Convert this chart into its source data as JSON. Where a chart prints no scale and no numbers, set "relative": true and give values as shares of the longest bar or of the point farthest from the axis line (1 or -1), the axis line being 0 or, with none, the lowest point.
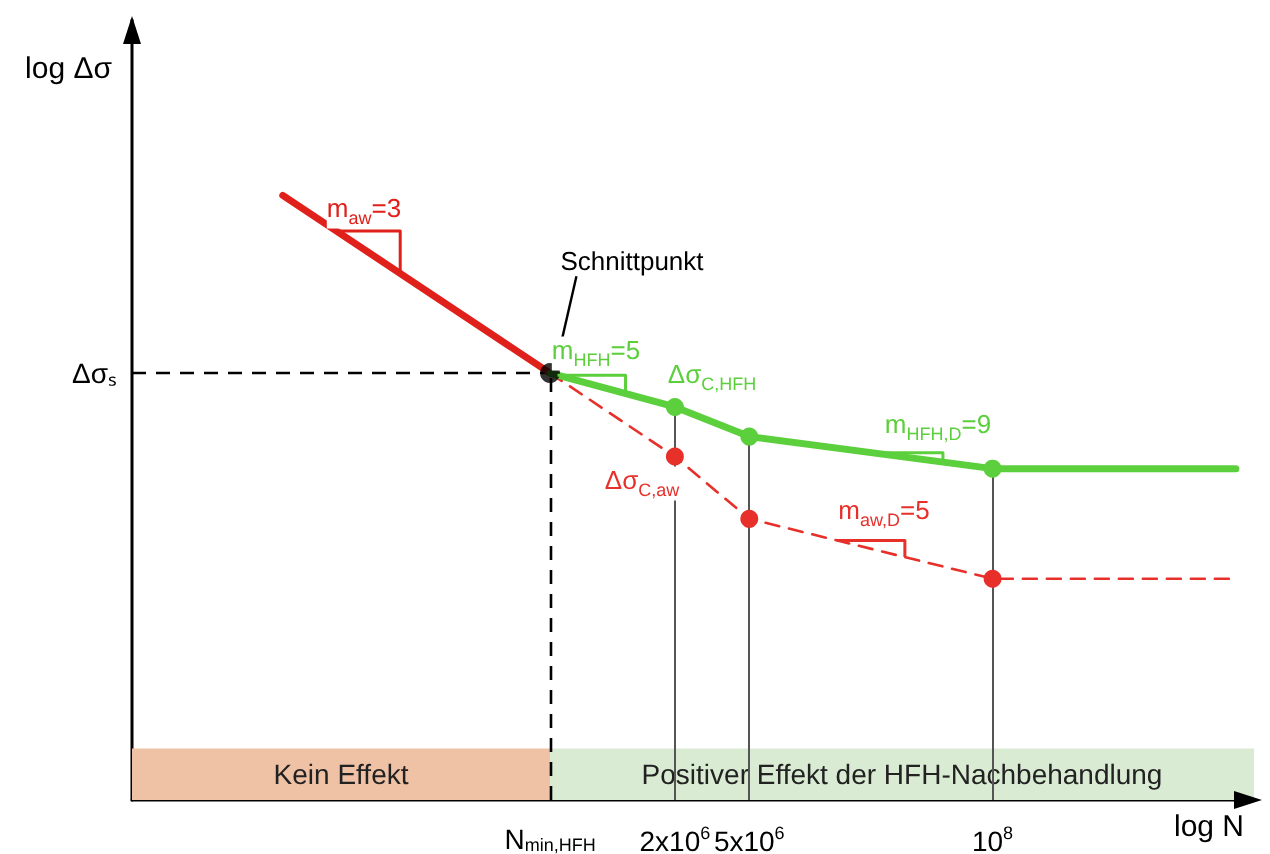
{
  "chart_data": {
    "type": "line",
    "xlabel": "log N",
    "ylabel": "log Δσ",
    "relative": true,
    "log": "x",
    "xlim": [
      2500,
      2500000000
    ],
    "xticks": [
      {
        "value": 430000,
        "label": "N$_{min,HFH}$"
      },
      {
        "value": 2000000,
        "label": "2x10$^{6}$"
      },
      {
        "value": 5000000,
        "label": "5x10$^{6}$"
      },
      {
        "value": 100000000,
        "label": "10$^{8}$"
      }
    ],
    "series": [
      {
        "x": [
          16000,
          430000
        ],
        "values": [
          1.0,
          0.706
        ],
        "color": "#e0201b",
        "marker": "none",
        "line_style": "solid"
      },
      {
        "x": [
          430000,
          2000000,
          5000000,
          100000000,
          2000000000
        ],
        "values": [
          0.706,
          0.568,
          0.465,
          0.366,
          0.366
        ],
        "color": "#e8302a",
        "marker": "circle",
        "line_style": "dashed"
      },
      {
        "x": [
          430000,
          2000000,
          5000000,
          100000000,
          2000000000
        ],
        "values": [
          0.706,
          0.65,
          0.601,
          0.548,
          0.548
        ],
        "color": "#5ccf3c",
        "marker": "circle",
        "line_style": "solid"
      },
      {
        "type": "scatter",
        "x": [
          430000
        ],
        "values": [
          0.706
        ],
        "color": "#000000",
        "marker": "circle"
      }
    ],
    "ref_lines": [
      {
        "axis": "y",
        "value": 0.706,
        "label": "Δσₛ",
        "color": "#000000",
        "line_style": "dashed"
      },
      {
        "axis": "x",
        "value": 430000,
        "label": null,
        "color": "#000000",
        "line_style": "dashed"
      },
      {
        "axis": "x",
        "value": 2000000,
        "label": null,
        "color": "#555555",
        "line_style": "solid"
      },
      {
        "axis": "x",
        "value": 5000000,
        "label": null,
        "color": "#555555",
        "line_style": "solid"
      },
      {
        "axis": "x",
        "value": 100000000,
        "label": null,
        "color": "#555555",
        "line_style": "solid"
      }
    ],
    "bands": [
      {
        "axis": "x",
        "from": 2500,
        "to": 430000,
        "label": "Kein Effekt",
        "color": "#efc2a6"
      },
      {
        "axis": "x",
        "from": 430000,
        "to": 2500000000,
        "label": "Positiver Effekt der HFH-Nachbehandlung",
        "color": "#d9ebd2"
      }
    ],
    "annotations": [
      "m$_{aw}$=3",
      "Schnittpunkt",
      "m$_{HFH}$=5",
      "Δσ$_{C,HFH}$",
      "Δσ$_{C,aw}$",
      "m$_{HFH,D}$=9",
      "m$_{aw,D}$=5"
    ],
    "grid": false
  }
}
